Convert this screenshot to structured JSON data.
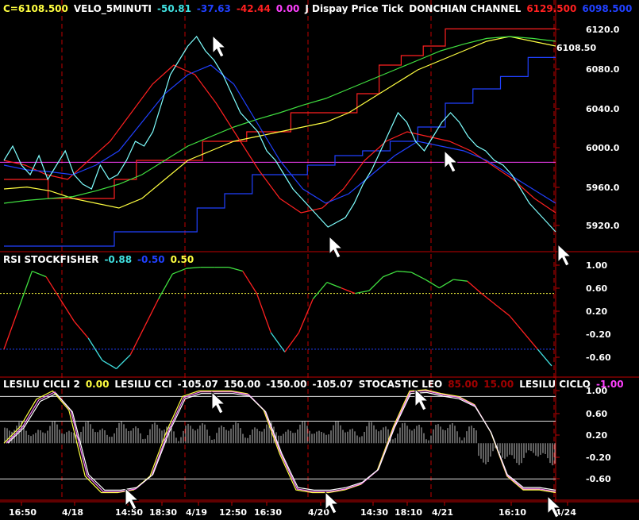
{
  "colors": {
    "bg": "#000000",
    "grid": "#c00000",
    "price": "#7fffff",
    "white": "#ffffff",
    "red": "#ff2020",
    "blue": "#2040ff",
    "yellow": "#ffff40",
    "green": "#40e040",
    "magenta": "#ff40ff",
    "pink": "#ff80ff",
    "darkred": "#a00000",
    "cyan": "#40e0e0"
  },
  "panels": [
    {
      "id": "price",
      "header": [
        {
          "t": "C=6108.500",
          "c": "#ffff40"
        },
        {
          "t": "VELO_5MINUTI",
          "c": "#ffffff"
        },
        {
          "t": "-50.81",
          "c": "#40e0e0"
        },
        {
          "t": "-37.63",
          "c": "#2040ff"
        },
        {
          "t": "-42.44",
          "c": "#ff2020"
        },
        {
          "t": "0.00",
          "c": "#ff40ff"
        },
        {
          "t": "J Dispay Price Tick",
          "c": "#ffffff"
        },
        {
          "t": "DONCHIAN CHANNEL",
          "c": "#ffffff"
        },
        {
          "t": "6129.500",
          "c": "#ff2020"
        },
        {
          "t": "6098.500",
          "c": "#2040ff"
        }
      ],
      "ticks": [
        "6120.0",
        "6080.0",
        "6040.0",
        "6000.0",
        "5960.0",
        "5920.0"
      ],
      "last_label": "6108.50"
    },
    {
      "id": "rsi",
      "header": [
        {
          "t": "RSI STOCKFISHER",
          "c": "#ffffff"
        },
        {
          "t": "-0.88",
          "c": "#40e0e0"
        },
        {
          "t": "-0.50",
          "c": "#2040ff"
        },
        {
          "t": "0.50",
          "c": "#ffff40"
        }
      ],
      "ticks": [
        "1.00",
        "0.60",
        "0.20",
        "-0.20",
        "-0.60"
      ]
    },
    {
      "id": "osc",
      "header": [
        {
          "t": "LESILU CICLI 2",
          "c": "#ffffff"
        },
        {
          "t": "0.00",
          "c": "#ffff40"
        },
        {
          "t": "LESILU CCI",
          "c": "#ffffff"
        },
        {
          "t": "-105.07",
          "c": "#ffffff"
        },
        {
          "t": "150.00",
          "c": "#ffffff"
        },
        {
          "t": "-150.00",
          "c": "#ffffff"
        },
        {
          "t": "-105.07",
          "c": "#ffffff"
        },
        {
          "t": "STOCASTIC LEO",
          "c": "#ffffff"
        },
        {
          "t": "85.00",
          "c": "#a00000"
        },
        {
          "t": "15.00",
          "c": "#a00000"
        },
        {
          "t": "LESILU CICLO",
          "c": "#ffffff"
        },
        {
          "t": "-1.00",
          "c": "#ff40ff"
        }
      ],
      "ticks": [
        "1.00",
        "0.60",
        "0.20",
        "-0.20",
        "-0.60"
      ]
    }
  ],
  "x_labels": [
    "16:50",
    "4/18",
    "14:50",
    "18:30",
    "4/19",
    "12:50",
    "16:30",
    "4/20",
    "14:30",
    "18:10",
    "4/21",
    "16:10",
    "4/24"
  ],
  "chart_data": [
    {
      "type": "line",
      "title": "VELO_5MINUTI / DONCHIAN CHANNEL",
      "yticks": [
        6120,
        6080,
        6040,
        6000,
        5960,
        5920
      ],
      "ylim": [
        5900,
        6135
      ],
      "last_price": 6108.5,
      "price": [
        5990,
        6005,
        5985,
        5975,
        5995,
        5970,
        5985,
        6000,
        5975,
        5965,
        5960,
        5985,
        5970,
        5975,
        5990,
        6010,
        6005,
        6020,
        6050,
        6080,
        6095,
        6110,
        6120,
        6105,
        6095,
        6080,
        6060,
        6040,
        6030,
        6020,
        6000,
        5990,
        5975,
        5960,
        5950,
        5940,
        5930,
        5920,
        5925,
        5930,
        5945,
        5965,
        5980,
        6000,
        6020,
        6040,
        6030,
        6010,
        6000,
        6015,
        6030,
        6040,
        6030,
        6015,
        6005,
        6000,
        5990,
        5985,
        5975,
        5960,
        5945,
        5935,
        5925,
        5915
      ],
      "donchian_upper": [
        5970,
        5970,
        5950,
        5950,
        5950,
        5970,
        5990,
        5990,
        5990,
        6010,
        6010,
        6020,
        6020,
        6040,
        6040,
        6040,
        6060,
        6090,
        6100,
        6110,
        6128,
        6128,
        6128,
        6128,
        6128,
        6128
      ],
      "donchian_lower": [
        5900,
        5900,
        5900,
        5900,
        5915,
        5915,
        5915,
        5940,
        5955,
        5975,
        5975,
        5985,
        5995,
        6000,
        6010,
        6025,
        6050,
        6065,
        6078,
        6098,
        6098
      ],
      "series": [
        {
          "values": [
            5960,
            5962,
            5958,
            5950,
            5945,
            5940,
            5950,
            5970,
            5990,
            6000,
            6010,
            6015,
            6020,
            6025,
            6030,
            6040,
            6055,
            6070,
            6085,
            6095,
            6105,
            6115,
            6120,
            6115,
            6110
          ]
        },
        {
          "values": [
            5945,
            5948,
            5950,
            5952,
            5958,
            5965,
            5975,
            5990,
            6005,
            6015,
            6025,
            6033,
            6040,
            6048,
            6055,
            6065,
            6075,
            6085,
            6095,
            6105,
            6112,
            6118,
            6120,
            6118,
            6115
          ]
        },
        {
          "values": [
            5990,
            5985,
            5975,
            5970,
            5990,
            6010,
            6040,
            6070,
            6090,
            6080,
            6050,
            6015,
            5980,
            5950,
            5935,
            5940,
            5960,
            5990,
            6010,
            6020,
            6015,
            6010,
            6000,
            5985,
            5970,
            5950,
            5935
          ]
        },
        {
          "values": [
            5985,
            5980,
            5978,
            5975,
            5985,
            6000,
            6030,
            6060,
            6080,
            6090,
            6070,
            6030,
            5990,
            5960,
            5945,
            5955,
            5975,
            5995,
            6010,
            6005,
            6000,
            5990,
            5975,
            5960,
            5945
          ]
        }
      ],
      "reference_line": 5988
    },
    {
      "type": "line",
      "title": "RSI STOCKFISHER",
      "yticks": [
        1.0,
        0.6,
        0.2,
        -0.2,
        -0.6
      ],
      "ylim": [
        -0.9,
        1.15
      ],
      "values": [
        -0.5,
        0.2,
        0.9,
        0.8,
        0.4,
        0.0,
        -0.3,
        -0.7,
        -0.85,
        -0.6,
        -0.1,
        0.4,
        0.85,
        0.95,
        0.97,
        0.97,
        0.97,
        0.9,
        0.5,
        -0.2,
        -0.55,
        -0.2,
        0.4,
        0.7,
        0.6,
        0.5,
        0.55,
        0.8,
        0.9,
        0.88,
        0.75,
        0.6,
        0.75,
        0.72,
        0.5,
        0.3,
        0.1,
        -0.2,
        -0.5,
        -0.8
      ],
      "levels": [
        0.5,
        -0.5
      ]
    },
    {
      "type": "line",
      "title": "LESILU CICLI 2 / LESILU CCI / STOCASTIC LEO / LESILU CICLO",
      "yticks": [
        1.0,
        0.6,
        0.2,
        -0.2,
        -0.6
      ],
      "ylim": [
        -0.95,
        1.1
      ],
      "cci_levels": [
        0.85,
        0.4,
        -0.65
      ],
      "ciclo": [
        0.0,
        0.3,
        0.8,
        0.95,
        0.6,
        -0.6,
        -0.9,
        -0.9,
        -0.85,
        -0.6,
        0.2,
        0.85,
        0.95,
        0.95,
        0.95,
        0.9,
        0.6,
        -0.2,
        -0.85,
        -0.9,
        -0.9,
        -0.85,
        -0.75,
        -0.5,
        0.3,
        0.95,
        0.97,
        0.9,
        0.85,
        0.7,
        0.2,
        -0.6,
        -0.85,
        -0.85,
        -0.9
      ]
    }
  ]
}
